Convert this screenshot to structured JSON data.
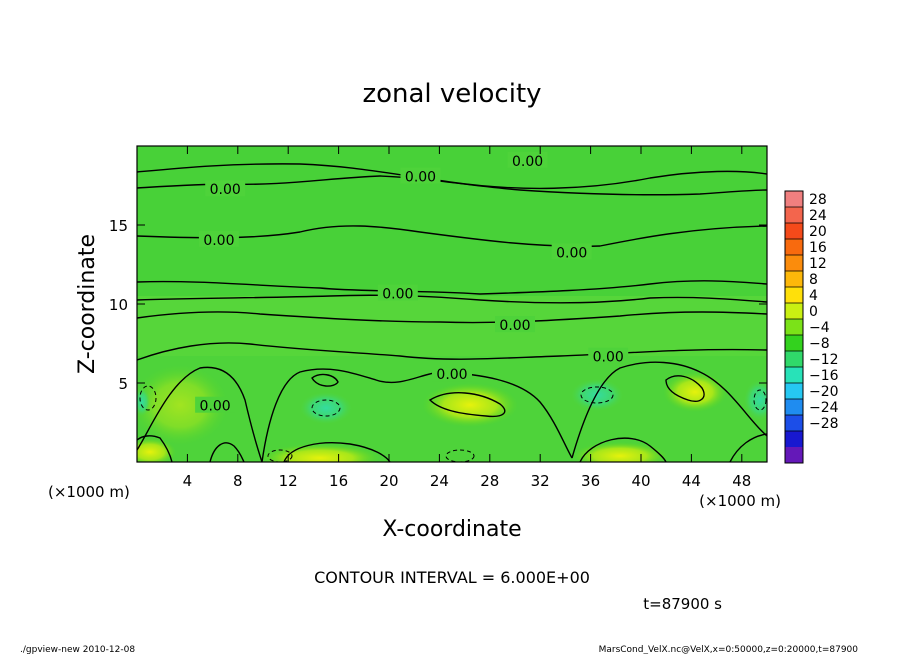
{
  "chart_data": {
    "type": "heatmap",
    "title": "zonal velocity",
    "xlabel": "X-coordinate",
    "ylabel": "Z-coordinate",
    "x_unit_label_left": "(×1000 m)",
    "x_unit_label_right": "(×1000 m)",
    "xlim": [
      0,
      50
    ],
    "ylim": [
      0,
      20
    ],
    "x_ticks": [
      4,
      8,
      12,
      16,
      20,
      24,
      28,
      32,
      36,
      40,
      44,
      48
    ],
    "y_ticks": [
      5,
      10,
      15
    ],
    "contour_labels": [
      {
        "text": "0.00",
        "x": 31,
        "y": 19.0
      },
      {
        "text": "0.00",
        "x": 22.5,
        "y": 18.0
      },
      {
        "text": "0.00",
        "x": 7.0,
        "y": 17.2
      },
      {
        "text": "0.00",
        "x": 6.5,
        "y": 14.0
      },
      {
        "text": "0.00",
        "x": 34.5,
        "y": 13.2
      },
      {
        "text": "0.00",
        "x": 20.7,
        "y": 10.6
      },
      {
        "text": "0.00",
        "x": 30.0,
        "y": 8.6
      },
      {
        "text": "0.00",
        "x": 37.4,
        "y": 6.6
      },
      {
        "text": "0.00",
        "x": 25.0,
        "y": 5.5
      },
      {
        "text": "0.00",
        "x": 6.2,
        "y": 3.5
      }
    ],
    "colorbar": {
      "ticks": [
        "28",
        "24",
        "20",
        "16",
        "12",
        "8",
        "4",
        "0",
        "−4",
        "−8",
        "−12",
        "−16",
        "−20",
        "−24",
        "−28"
      ],
      "colors": [
        "#f07f7f",
        "#f3654d",
        "#f44a1a",
        "#f86a0e",
        "#fb8c0c",
        "#fdb80a",
        "#ffe00a",
        "#c9f012",
        "#7be218",
        "#33d21e",
        "#30d96a",
        "#28e2b8",
        "#26c8f2",
        "#1f8cf0",
        "#1c4ee8",
        "#1818d0",
        "#6418b8"
      ]
    },
    "contour_interval": "CONTOUR INTERVAL = 6.000E+00",
    "time": "t=87900 s"
  },
  "footer": {
    "left": "./gpview-new   2010-12-08",
    "right": "MarsCond_VelX.nc@VelX,x=0:50000,z=0:20000,t=87900"
  }
}
